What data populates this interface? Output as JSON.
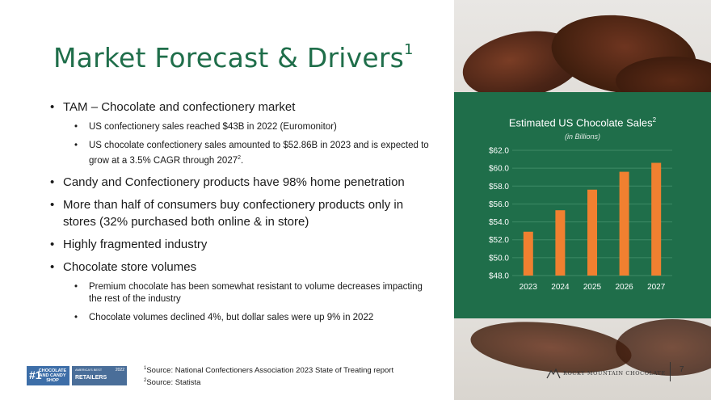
{
  "title": "Market Forecast & Drivers",
  "title_sup": "1",
  "bullets": {
    "tam": "TAM – Chocolate and confectionery market",
    "tam_sub1": "US confectionery sales reached $43B in 2022 (Euromonitor)",
    "tam_sub2_a": "US chocolate confectionery sales amounted to $52.86B in 2023 and is expected to grow at a 3.5% CAGR through 2027",
    "tam_sub2_sup": "2",
    "tam_sub2_b": ".",
    "penetration": "Candy and Confectionery products have 98% home penetration",
    "online": "More than half of consumers buy confectionery products only in stores (32% purchased both online & in store)",
    "fragmented": "Highly fragmented industry",
    "volumes": "Chocolate store volumes",
    "volumes_sub1": "Premium chocolate has been somewhat resistant to volume decreases impacting the rest of the industry",
    "volumes_sub2": "Chocolate volumes declined 4%, but dollar sales were up 9% in 2022"
  },
  "footnotes": {
    "n1_sup": "1",
    "n1": "Source: National Confectioners Association 2023 State of Treating report",
    "n2_sup": "2",
    "n2": "Source: Statista"
  },
  "badges": {
    "b1_num": "#1",
    "b1_text": "CHOCOLATE AND CANDY SHOP",
    "b2_small": "AMERICA'S BEST",
    "b2_big": "RETAILERS",
    "b2_year": "2022"
  },
  "logo_text": "ROCKY MOUNTAIN CHOCOLATE",
  "page_number": "7",
  "colors": {
    "brand_green": "#1f6e4a",
    "bar_orange": "#f08030",
    "grid": "#3f8a66"
  },
  "chart_data": {
    "type": "bar",
    "title": "Estimated US Chocolate Sales",
    "title_sup": "2",
    "subtitle": "(in Billions)",
    "categories": [
      "2023",
      "2024",
      "2025",
      "2026",
      "2027"
    ],
    "values": [
      52.9,
      55.3,
      57.6,
      59.6,
      60.6
    ],
    "ylim": [
      48,
      62
    ],
    "yticks": [
      "$48.0",
      "$50.0",
      "$52.0",
      "$54.0",
      "$56.0",
      "$58.0",
      "$60.0",
      "$62.0"
    ],
    "ytick_values": [
      48,
      50,
      52,
      54,
      56,
      58,
      60,
      62
    ],
    "grid": true,
    "legend": "none"
  }
}
